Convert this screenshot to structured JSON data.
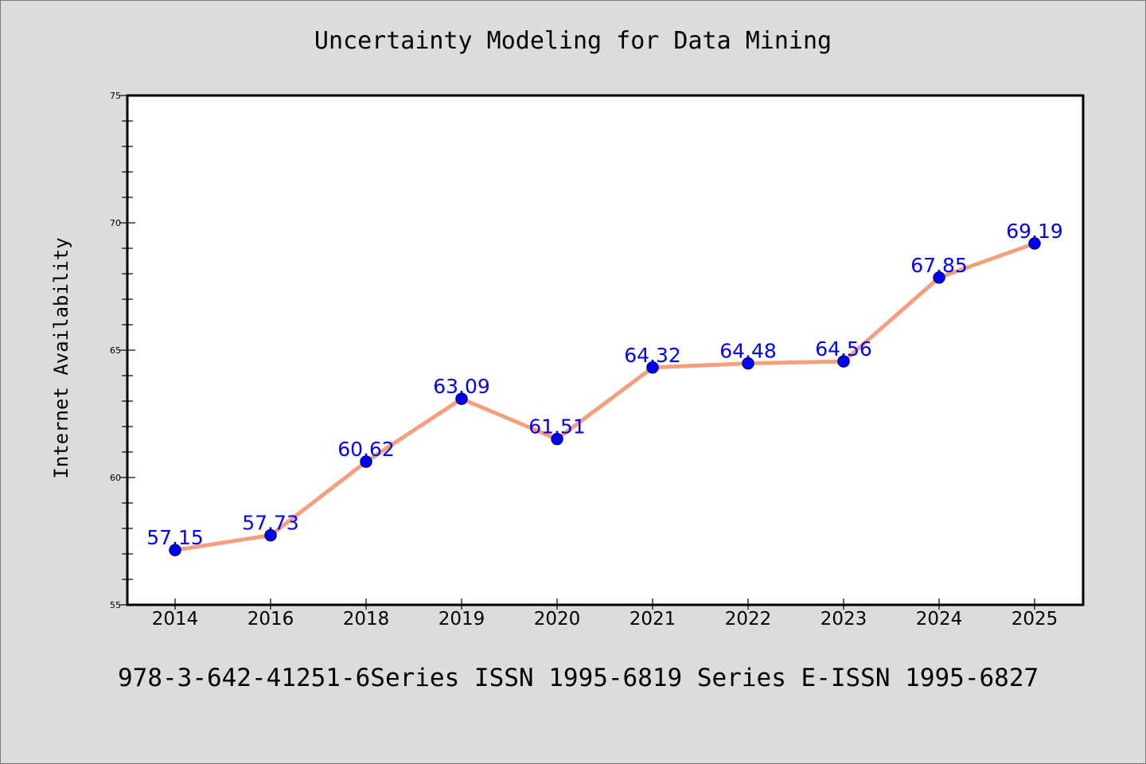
{
  "chart_data": {
    "type": "line",
    "title": "Uncertainty Modeling for Data Mining",
    "xlabel": "",
    "ylabel": "Internet Availability",
    "categories": [
      "2014",
      "2016",
      "2018",
      "2019",
      "2020",
      "2021",
      "2022",
      "2023",
      "2024",
      "2025"
    ],
    "series": [
      {
        "values": [
          57.15,
          57.73,
          60.62,
          63.09,
          61.51,
          64.32,
          64.48,
          64.56,
          67.85,
          69.19
        ],
        "data_labels": [
          "57.15",
          "57.73",
          "60.62",
          "63.09",
          "61.51",
          "64.32",
          "64.48",
          "64.56",
          "67.85",
          "69.19"
        ]
      }
    ],
    "ylim": [
      55,
      75
    ],
    "yticks": [
      "55",
      "60",
      "65",
      "70",
      "75"
    ],
    "grid": false,
    "legend": "none",
    "colors": {
      "line": "#f4a07e",
      "marker": "#0000ff",
      "marker_edge": "#00007a",
      "data_label": "#0000ff",
      "background": "#dcdcdc",
      "plot_background": "#ffffff"
    }
  },
  "footer": "978-3-642-41251-6Series ISSN 1995-6819 Series E-ISSN 1995-6827"
}
